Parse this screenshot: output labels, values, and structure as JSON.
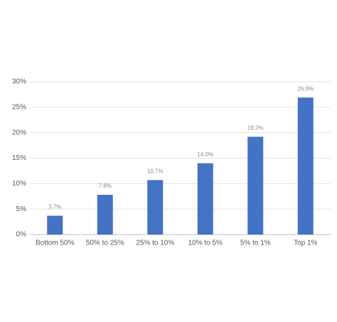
{
  "chart_data": {
    "type": "bar",
    "categories": [
      "Bottom 50%",
      "50% to 25%",
      "25% to 10%",
      "10% to 5%",
      "5% to 1%",
      "Top 1%"
    ],
    "values": [
      3.7,
      7.8,
      10.7,
      14.0,
      19.2,
      26.9
    ],
    "value_labels": [
      "3.7%",
      "7.8%",
      "10.7%",
      "14.0%",
      "19.2%",
      "26.9%"
    ],
    "color": "#4472c4",
    "ylim": [
      0,
      30
    ],
    "yticks": [
      {
        "value": 0,
        "label": "0%"
      },
      {
        "value": 5,
        "label": "5%"
      },
      {
        "value": 10,
        "label": "10%"
      },
      {
        "value": 15,
        "label": "15%"
      },
      {
        "value": 20,
        "label": "20%"
      },
      {
        "value": 25,
        "label": "25%"
      },
      {
        "value": 30,
        "label": "30%"
      }
    ],
    "grid": true
  }
}
